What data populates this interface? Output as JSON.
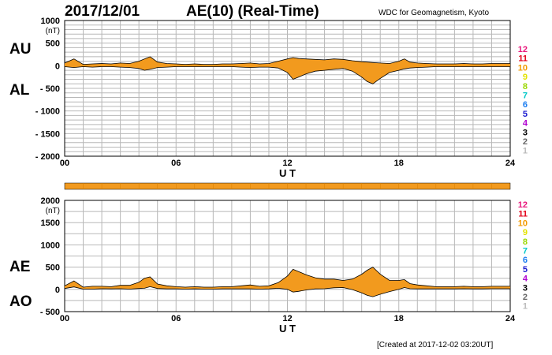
{
  "header": {
    "date": "2017/12/01",
    "title": "AE(10) (Real-Time)",
    "source": "WDC for Geomagnetism, Kyoto"
  },
  "footer": {
    "created": "[Created at 2017-12-02 03:20UT]"
  },
  "station_count_scale": {
    "labels": [
      "12",
      "11",
      "10",
      "9",
      "8",
      "7",
      "6",
      "5",
      "4",
      "3",
      "2",
      "1"
    ],
    "colors": [
      "#e8177c",
      "#e3001a",
      "#f29a00",
      "#e3e300",
      "#9ad800",
      "#00c8c8",
      "#1a7cf0",
      "#1a1ad0",
      "#b000d0",
      "#000000",
      "#666666",
      "#bbbbbb"
    ]
  },
  "bar_colors": {
    "fill": "#f29a1e",
    "line": "#000000"
  },
  "chart_data": [
    {
      "type": "area",
      "panel": "AU/AL",
      "series_labels": [
        "AU",
        "AL"
      ],
      "xlabel": "U T",
      "ylabel": "(nT)",
      "xlim": [
        0,
        24
      ],
      "ylim": [
        -2000,
        1000
      ],
      "xticks": [
        "00",
        "06",
        "12",
        "18",
        "24"
      ],
      "yticks": [
        "1000",
        "500",
        "0",
        "- 500",
        "- 1000",
        "- 1500",
        "- 2000"
      ],
      "x": [
        0,
        0.5,
        1,
        1.5,
        2,
        2.5,
        3,
        3.5,
        4,
        4.3,
        4.6,
        5,
        5.5,
        6,
        6.5,
        7,
        7.5,
        8,
        8.5,
        9,
        9.5,
        10,
        10.5,
        11,
        11.5,
        12,
        12.3,
        12.6,
        13,
        13.5,
        14,
        14.5,
        15,
        15.5,
        16,
        16.3,
        16.6,
        17,
        17.5,
        18,
        18.3,
        18.6,
        19,
        19.5,
        20,
        20.5,
        21,
        21.5,
        22,
        22.5,
        23,
        23.5,
        24
      ],
      "series": [
        {
          "name": "AU",
          "values": [
            60,
            150,
            30,
            40,
            50,
            40,
            60,
            50,
            100,
            150,
            200,
            80,
            50,
            40,
            30,
            40,
            30,
            30,
            40,
            40,
            50,
            60,
            40,
            50,
            100,
            150,
            180,
            160,
            150,
            140,
            130,
            150,
            140,
            110,
            90,
            80,
            70,
            60,
            50,
            100,
            150,
            80,
            60,
            50,
            40,
            40,
            40,
            50,
            40,
            40,
            50,
            50,
            50
          ]
        },
        {
          "name": "AL",
          "values": [
            -20,
            -40,
            -20,
            -30,
            -20,
            -20,
            -30,
            -40,
            -60,
            -100,
            -80,
            -40,
            -30,
            -20,
            -20,
            -20,
            -20,
            -20,
            -20,
            -20,
            -30,
            -40,
            -30,
            -30,
            -50,
            -150,
            -300,
            -250,
            -180,
            -120,
            -100,
            -80,
            -60,
            -120,
            -250,
            -350,
            -400,
            -280,
            -150,
            -100,
            -70,
            -50,
            -40,
            -30,
            -20,
            -20,
            -20,
            -20,
            -20,
            -20,
            -20,
            -20,
            -20
          ]
        }
      ]
    },
    {
      "type": "area",
      "panel": "AE/AO",
      "series_labels": [
        "AE",
        "AO"
      ],
      "xlabel": "U T",
      "ylabel": "(nT)",
      "xlim": [
        0,
        24
      ],
      "ylim": [
        -500,
        2000
      ],
      "xticks": [
        "00",
        "06",
        "12",
        "18",
        "24"
      ],
      "yticks": [
        "2000",
        "1500",
        "1000",
        "500",
        "0",
        "- 500"
      ],
      "x": [
        0,
        0.5,
        1,
        1.5,
        2,
        2.5,
        3,
        3.5,
        4,
        4.3,
        4.6,
        5,
        5.5,
        6,
        6.5,
        7,
        7.5,
        8,
        8.5,
        9,
        9.5,
        10,
        10.5,
        11,
        11.5,
        12,
        12.3,
        12.6,
        13,
        13.5,
        14,
        14.5,
        15,
        15.5,
        16,
        16.3,
        16.6,
        17,
        17.5,
        18,
        18.3,
        18.6,
        19,
        19.5,
        20,
        20.5,
        21,
        21.5,
        22,
        22.5,
        23,
        23.5,
        24
      ],
      "series": [
        {
          "name": "AE",
          "values": [
            80,
            190,
            50,
            70,
            70,
            60,
            90,
            90,
            160,
            250,
            280,
            120,
            80,
            60,
            50,
            60,
            50,
            50,
            60,
            60,
            80,
            100,
            70,
            80,
            150,
            300,
            450,
            400,
            330,
            260,
            230,
            230,
            200,
            230,
            340,
            430,
            500,
            340,
            200,
            200,
            220,
            130,
            100,
            80,
            60,
            60,
            60,
            70,
            60,
            60,
            70,
            70,
            70
          ]
        },
        {
          "name": "AO",
          "values": [
            20,
            55,
            5,
            5,
            15,
            10,
            15,
            5,
            20,
            25,
            60,
            20,
            10,
            10,
            5,
            10,
            5,
            5,
            10,
            10,
            10,
            10,
            5,
            10,
            25,
            0,
            -60,
            -45,
            -15,
            10,
            15,
            35,
            40,
            -5,
            -80,
            -135,
            -165,
            -110,
            -50,
            0,
            40,
            15,
            10,
            10,
            10,
            10,
            10,
            15,
            10,
            10,
            15,
            15,
            15
          ]
        }
      ]
    }
  ]
}
